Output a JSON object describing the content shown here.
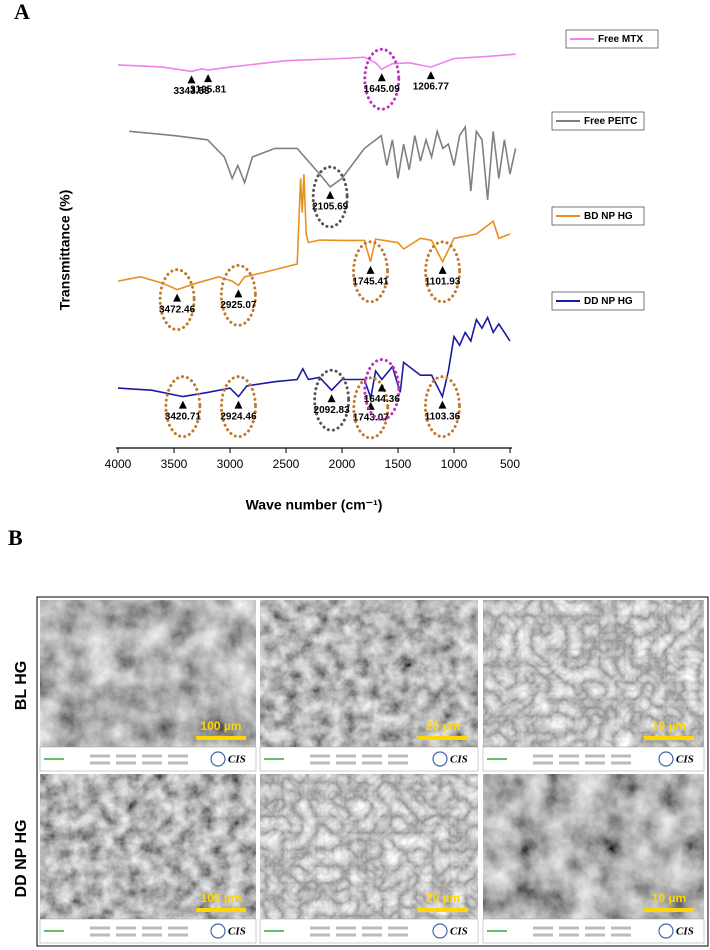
{
  "panel_labels": [
    "A",
    "B"
  ],
  "chart_data": {
    "type": "line",
    "y_label": "Transmittance (%)",
    "x_label": "Wave number (cm⁻¹)",
    "xlim": [
      4000,
      500
    ],
    "xticks": [
      4000,
      3500,
      3000,
      2500,
      2000,
      1500,
      1000,
      500
    ],
    "ylim": [
      0,
      100
    ],
    "series": [
      {
        "name": "Free MTX",
        "color": "#ee82ee",
        "x": [
          4000,
          3600,
          3343.53,
          3250,
          3195.81,
          3000,
          2500,
          2000,
          1800,
          1700,
          1645.09,
          1550,
          1400,
          1206.77,
          1000,
          700,
          450
        ],
        "y": [
          89.5,
          89,
          88,
          88.6,
          88.3,
          89,
          90.5,
          91,
          91.3,
          90,
          88.5,
          89.8,
          90,
          89,
          91,
          91.5,
          92
        ],
        "peaks": [
          {
            "x": 3343.53,
            "label": "3343.53"
          },
          {
            "x": 3195.81,
            "label": "3195.81"
          },
          {
            "x": 1645.09,
            "label": "1645.09",
            "ring": "#c030c0"
          },
          {
            "x": 1206.77,
            "label": "1206.77"
          }
        ]
      },
      {
        "name": "Free PEITC",
        "color": "#808080",
        "x": [
          3900,
          3500,
          3200,
          3050,
          2980,
          2930,
          2870,
          2800,
          2600,
          2400,
          2200,
          2105.69,
          2000,
          1800,
          1650,
          1600,
          1550,
          1500,
          1450,
          1400,
          1350,
          1300,
          1250,
          1200,
          1150,
          1100,
          1050,
          1000,
          950,
          900,
          850,
          800,
          750,
          700,
          650,
          600,
          550,
          500,
          450
        ],
        "y": [
          74,
          73,
          72,
          68,
          63,
          66,
          62,
          68,
          70,
          70,
          64,
          61,
          63,
          70,
          73,
          66,
          72,
          63,
          71,
          65,
          73,
          67,
          72,
          68,
          74,
          70,
          71,
          66,
          73,
          75,
          60,
          74,
          72,
          58,
          74,
          63,
          72,
          64,
          70
        ],
        "peaks": [
          {
            "x": 2105.69,
            "label": "2105.69",
            "ring": "#555555"
          }
        ]
      },
      {
        "name": "BD NP HG",
        "color": "#e8901e",
        "x": [
          4000,
          3800,
          3600,
          3472.46,
          3300,
          3100,
          2980,
          2925.07,
          2870,
          2700,
          2400,
          2370,
          2355,
          2340,
          2320,
          2300,
          2200,
          2000,
          1800,
          1745.41,
          1700,
          1500,
          1450,
          1300,
          1200,
          1101.93,
          1000,
          800,
          650,
          600,
          500
        ],
        "y": [
          39,
          40,
          38.5,
          37,
          38.5,
          40,
          39,
          38,
          40,
          41,
          43,
          63,
          55,
          64,
          50,
          48,
          48.6,
          48.5,
          48.5,
          43.5,
          48.8,
          48,
          46.5,
          49,
          48.5,
          43.5,
          49,
          50,
          53,
          49,
          50
        ],
        "peaks": [
          {
            "x": 3472.46,
            "label": "3472.46",
            "ring": "#c07a2a"
          },
          {
            "x": 2925.07,
            "label": "2925.07",
            "ring": "#c07a2a"
          },
          {
            "x": 1745.41,
            "label": "1745.41",
            "ring": "#c07a2a"
          },
          {
            "x": 1101.93,
            "label": "1101.93",
            "ring": "#c07a2a"
          }
        ]
      },
      {
        "name": "DD NP HG",
        "color": "#1a1aa8",
        "x": [
          4000,
          3700,
          3420.71,
          3200,
          3000,
          2924.46,
          2850,
          2600,
          2400,
          2350,
          2300,
          2200,
          2092.83,
          2000,
          1800,
          1743.07,
          1700,
          1644.36,
          1550,
          1480,
          1450,
          1300,
          1200,
          1103.36,
          1050,
          1000,
          950,
          900,
          850,
          800,
          750,
          700,
          650,
          600,
          550,
          500
        ],
        "y": [
          14,
          13.5,
          12,
          13,
          14,
          12,
          14.5,
          15.5,
          16,
          18.5,
          16,
          16.5,
          13.5,
          16,
          16,
          11.7,
          18,
          16,
          19,
          13,
          20,
          17,
          17,
          12,
          18,
          26,
          24,
          27,
          25,
          30,
          28,
          30.5,
          27,
          29,
          27,
          25
        ],
        "peaks": [
          {
            "x": 3420.71,
            "label": "3420.71",
            "ring": "#c07a2a"
          },
          {
            "x": 2924.46,
            "label": "2924.46",
            "ring": "#c07a2a"
          },
          {
            "x": 2092.83,
            "label": "2092.83",
            "ring": "#555555"
          },
          {
            "x": 1743.07,
            "label": "1743.07",
            "ring": "#c07a2a"
          },
          {
            "x": 1644.36,
            "label": "1644.36",
            "ring": "#c030c0"
          },
          {
            "x": 1103.36,
            "label": "1103.36",
            "ring": "#c07a2a"
          }
        ]
      }
    ]
  },
  "sem": {
    "logo": "CIS",
    "rows": [
      {
        "label": "BL HG",
        "scale_bars": [
          "100 µm",
          "20 µm",
          "10 µm"
        ]
      },
      {
        "label": "DD NP HG",
        "scale_bars": [
          "100 µm",
          "20 µm",
          "10 µm"
        ]
      }
    ]
  }
}
